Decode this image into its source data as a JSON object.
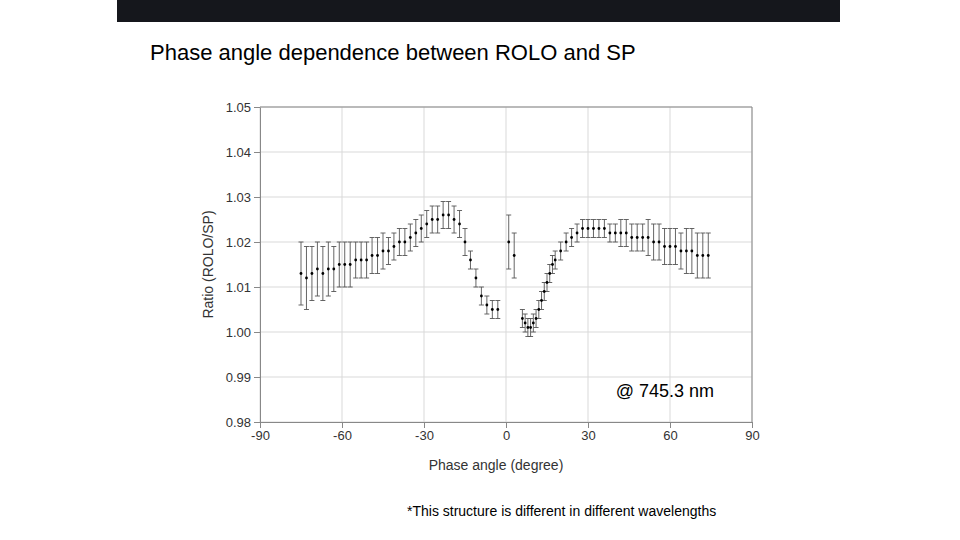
{
  "chart_data": {
    "type": "scatter",
    "title": "Phase angle dependence between ROLO and SP",
    "x_label": "Phase angle (degree)",
    "y_label": "Ratio (ROLO/SP)",
    "annotations": [
      "@ 745.3 nm",
      "*This structure is different in different wavelengths"
    ],
    "color": "#000000",
    "marker": "circle",
    "grid": true,
    "xlim": [
      -90,
      90
    ],
    "xticks": [
      -90,
      -60,
      -30,
      0,
      30,
      60,
      90
    ],
    "ylim": [
      0.98,
      1.05
    ],
    "yticks": [
      0.98,
      0.99,
      {
        "value": 1,
        "label": "1.00"
      },
      1.01,
      1.02,
      1.03,
      1.04,
      1.05
    ],
    "x": [
      -75,
      -73,
      -71,
      -69,
      -67,
      -65,
      -63,
      -61,
      -59,
      -57,
      -55,
      -53,
      -51,
      -49,
      -47,
      -45,
      -43,
      -41,
      -39,
      -37,
      -35,
      -33,
      -31,
      -29,
      -27,
      -25,
      -23,
      -21,
      -19,
      -17,
      -15,
      -13,
      -11,
      -9,
      -7,
      -5,
      -3,
      1,
      3,
      6,
      7,
      8,
      9,
      10,
      11,
      12,
      13,
      14,
      15,
      16,
      17,
      18,
      20,
      22,
      24,
      26,
      28,
      30,
      32,
      34,
      36,
      38,
      40,
      42,
      44,
      46,
      48,
      50,
      52,
      54,
      56,
      58,
      60,
      62,
      64,
      66,
      68,
      70,
      72,
      74
    ],
    "values": [
      1.013,
      1.012,
      1.013,
      1.014,
      1.013,
      1.014,
      1.014,
      1.015,
      1.015,
      1.015,
      1.016,
      1.016,
      1.016,
      1.017,
      1.017,
      1.018,
      1.018,
      1.019,
      1.02,
      1.02,
      1.021,
      1.022,
      1.023,
      1.024,
      1.025,
      1.025,
      1.026,
      1.026,
      1.025,
      1.024,
      1.02,
      1.016,
      1.012,
      1.008,
      1.006,
      1.005,
      1.005,
      1.02,
      1.017,
      1.003,
      1.002,
      1.001,
      1.001,
      1.002,
      1.003,
      1.005,
      1.007,
      1.009,
      1.011,
      1.013,
      1.015,
      1.016,
      1.018,
      1.02,
      1.021,
      1.022,
      1.023,
      1.023,
      1.023,
      1.023,
      1.023,
      1.022,
      1.022,
      1.022,
      1.022,
      1.021,
      1.021,
      1.021,
      1.021,
      1.02,
      1.02,
      1.019,
      1.019,
      1.019,
      1.018,
      1.018,
      1.018,
      1.017,
      1.017,
      1.017
    ],
    "errors": [
      0.007,
      0.007,
      0.006,
      0.006,
      0.006,
      0.006,
      0.005,
      0.005,
      0.005,
      0.005,
      0.004,
      0.004,
      0.004,
      0.004,
      0.004,
      0.004,
      0.003,
      0.003,
      0.003,
      0.003,
      0.003,
      0.003,
      0.003,
      0.003,
      0.003,
      0.003,
      0.003,
      0.003,
      0.003,
      0.003,
      0.003,
      0.002,
      0.002,
      0.002,
      0.002,
      0.002,
      0.002,
      0.006,
      0.005,
      0.002,
      0.002,
      0.002,
      0.002,
      0.002,
      0.002,
      0.002,
      0.002,
      0.002,
      0.002,
      0.002,
      0.002,
      0.002,
      0.002,
      0.002,
      0.002,
      0.002,
      0.002,
      0.002,
      0.002,
      0.002,
      0.002,
      0.002,
      0.002,
      0.003,
      0.003,
      0.003,
      0.003,
      0.003,
      0.004,
      0.004,
      0.004,
      0.004,
      0.004,
      0.004,
      0.004,
      0.005,
      0.005,
      0.005,
      0.005,
      0.005
    ]
  }
}
